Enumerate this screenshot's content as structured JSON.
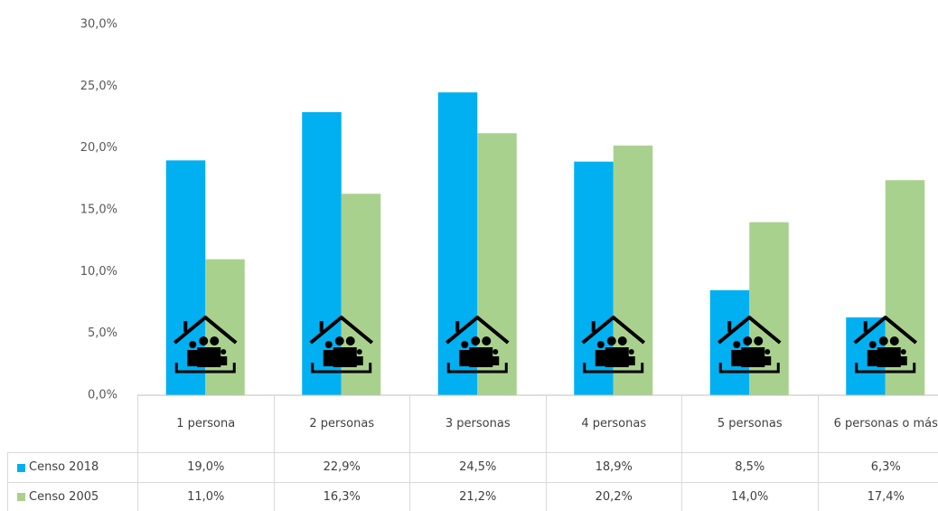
{
  "chart_data": {
    "type": "bar",
    "categories": [
      "1 persona",
      "2 personas",
      "3 personas",
      "4 personas",
      "5 personas",
      "6 personas o más"
    ],
    "series": [
      {
        "name": "Censo 2018",
        "color": "#00b0f0",
        "values": [
          19.0,
          22.9,
          24.5,
          18.9,
          8.5,
          6.3
        ],
        "value_labels": [
          "19,0%",
          "22,9%",
          "24,5%",
          "18,9%",
          "8,5%",
          "6,3%"
        ]
      },
      {
        "name": "Censo 2005",
        "color": "#a9d18e",
        "values": [
          11.0,
          16.3,
          21.2,
          20.2,
          14.0,
          17.4
        ],
        "value_labels": [
          "11,0%",
          "16,3%",
          "21,2%",
          "20,2%",
          "14,0%",
          "17,4%"
        ]
      }
    ],
    "ylim": [
      0,
      30
    ],
    "yticks": [
      {
        "value": 0,
        "label": "0,0%"
      },
      {
        "value": 5,
        "label": "5,0%"
      },
      {
        "value": 10,
        "label": "10,0%"
      },
      {
        "value": 15,
        "label": "15,0%"
      },
      {
        "value": 20,
        "label": "20,0%"
      },
      {
        "value": 25,
        "label": "25,0%"
      },
      {
        "value": 30,
        "label": "30,0%"
      }
    ],
    "grid": false
  }
}
